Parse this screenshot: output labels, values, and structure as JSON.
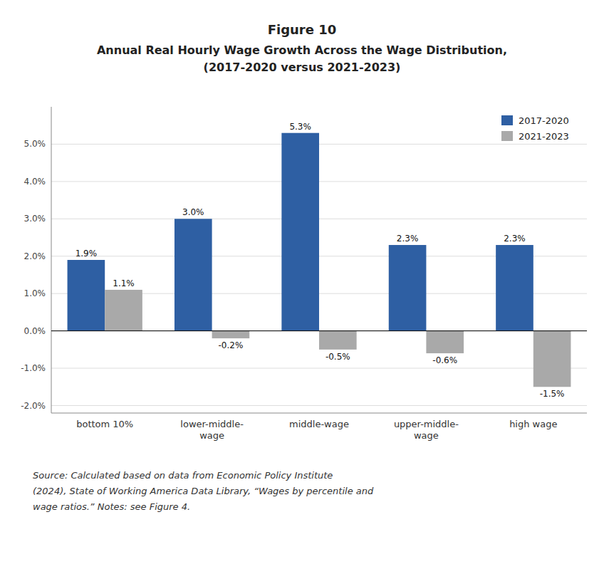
{
  "chart_data": {
    "type": "bar",
    "title": "Figure 10",
    "subtitle": [
      "Annual Real Hourly Wage Growth Across the Wage Distribution,",
      "(2017-2020 versus 2021-2023)"
    ],
    "categories": [
      "bottom 10%",
      "lower-middle-\nwage",
      "middle-wage",
      "upper-middle-\nwage",
      "high wage"
    ],
    "series": [
      {
        "name": "2017-2020",
        "color": "#2E5FA3",
        "values": [
          1.9,
          3.0,
          5.3,
          2.3,
          2.3
        ],
        "value_labels": [
          "1.9%",
          "3.0%",
          "5.3%",
          "2.3%",
          "2.3%"
        ]
      },
      {
        "name": "2021-2023",
        "color": "#A9A9A9",
        "values": [
          1.1,
          -0.2,
          -0.5,
          -0.6,
          -1.5
        ],
        "value_labels": [
          "1.1%",
          "-0.2%",
          "-0.5%",
          "-0.6%",
          "-1.5%"
        ]
      }
    ],
    "ylim": [
      -2.2,
      6.0
    ],
    "yticks": [
      {
        "value": -2.0,
        "label": "-2.0%"
      },
      {
        "value": -1.0,
        "label": "-1.0%"
      },
      {
        "value": 0.0,
        "label": "0.0%"
      },
      {
        "value": 1.0,
        "label": "1.0%"
      },
      {
        "value": 2.0,
        "label": "2.0%"
      },
      {
        "value": 3.0,
        "label": "3.0%"
      },
      {
        "value": 4.0,
        "label": "4.0%"
      },
      {
        "value": 5.0,
        "label": "5.0%"
      }
    ],
    "grid": true,
    "legend": "upper right",
    "data_labels": true,
    "annotations": [
      "Source:  Calculated based on data from Economic Policy Institute",
      "(2024), State of Working America Data Library, “Wages by percentile and",
      "wage ratios.” Notes: see Figure 4."
    ]
  }
}
